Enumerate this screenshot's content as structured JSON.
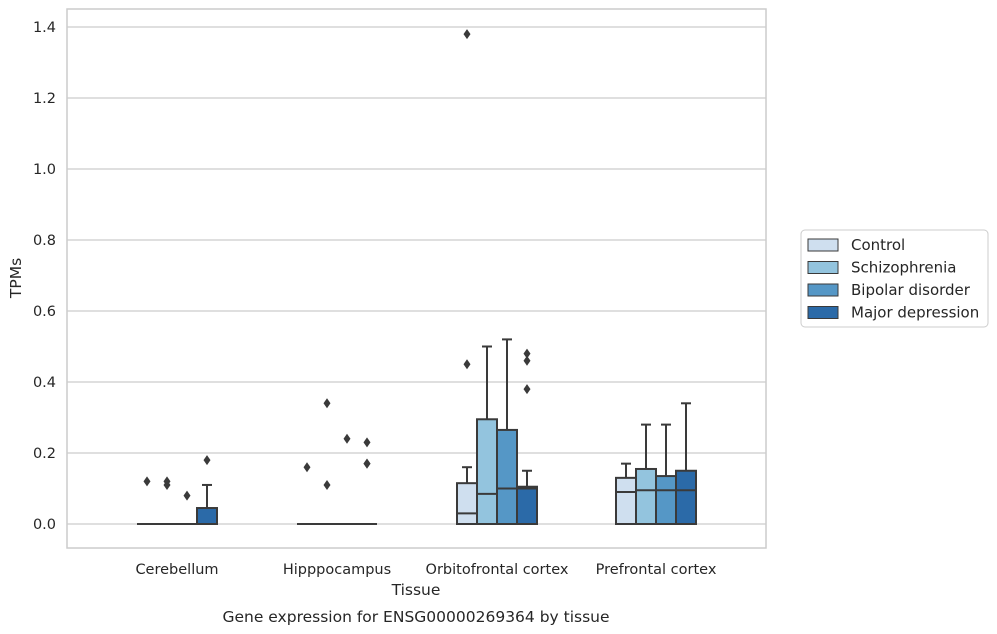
{
  "chart_data": {
    "type": "box",
    "title": "",
    "caption": "Gene expression for ENSG00000269364 by tissue",
    "xlabel": "Tissue",
    "ylabel": "TPMs",
    "ylim": [
      -0.065,
      1.45
    ],
    "yticks": [
      0.0,
      0.2,
      0.4,
      0.6,
      0.8,
      1.0,
      1.2,
      1.4
    ],
    "ytick_labels": [
      "0.0",
      "0.2",
      "0.4",
      "0.6",
      "0.8",
      "1.0",
      "1.2",
      "1.4"
    ],
    "grid": "horizontal",
    "legend_position": "right",
    "categories": [
      "Cerebellum",
      "Hipppocampus",
      "Orbitofrontal cortex",
      "Prefrontal cortex"
    ],
    "series": [
      {
        "name": "Control",
        "color": "#cfdfef",
        "boxes": [
          {
            "q1": 0,
            "median": 0,
            "q3": 0,
            "whisker_low": 0,
            "whisker_high": 0,
            "outliers": [
              0.12
            ]
          },
          {
            "q1": 0,
            "median": 0,
            "q3": 0,
            "whisker_low": 0,
            "whisker_high": 0,
            "outliers": [
              0.16
            ]
          },
          {
            "q1": 0,
            "median": 0.03,
            "q3": 0.115,
            "whisker_low": 0,
            "whisker_high": 0.16,
            "outliers": [
              0.45,
              1.38
            ]
          },
          {
            "q1": 0,
            "median": 0.09,
            "q3": 0.13,
            "whisker_low": 0,
            "whisker_high": 0.17,
            "outliers": []
          }
        ]
      },
      {
        "name": "Schizophrenia",
        "color": "#93c4de",
        "boxes": [
          {
            "q1": 0,
            "median": 0,
            "q3": 0,
            "whisker_low": 0,
            "whisker_high": 0,
            "outliers": [
              0.11,
              0.12
            ]
          },
          {
            "q1": 0,
            "median": 0,
            "q3": 0,
            "whisker_low": 0,
            "whisker_high": 0,
            "outliers": [
              0.11,
              0.34
            ]
          },
          {
            "q1": 0,
            "median": 0.085,
            "q3": 0.295,
            "whisker_low": 0,
            "whisker_high": 0.5,
            "outliers": []
          },
          {
            "q1": 0,
            "median": 0.095,
            "q3": 0.155,
            "whisker_low": 0,
            "whisker_high": 0.28,
            "outliers": []
          }
        ]
      },
      {
        "name": "Bipolar disorder",
        "color": "#5597c6",
        "boxes": [
          {
            "q1": 0,
            "median": 0,
            "q3": 0,
            "whisker_low": 0,
            "whisker_high": 0,
            "outliers": [
              0.08
            ]
          },
          {
            "q1": 0,
            "median": 0,
            "q3": 0,
            "whisker_low": 0,
            "whisker_high": 0,
            "outliers": [
              0.24
            ]
          },
          {
            "q1": 0,
            "median": 0.1,
            "q3": 0.265,
            "whisker_low": 0,
            "whisker_high": 0.52,
            "outliers": []
          },
          {
            "q1": 0,
            "median": 0.095,
            "q3": 0.135,
            "whisker_low": 0,
            "whisker_high": 0.28,
            "outliers": []
          }
        ]
      },
      {
        "name": "Major depression",
        "color": "#2b6aa8",
        "boxes": [
          {
            "q1": 0,
            "median": 0,
            "q3": 0.045,
            "whisker_low": 0,
            "whisker_high": 0.11,
            "outliers": [
              0.18
            ]
          },
          {
            "q1": 0,
            "median": 0,
            "q3": 0,
            "whisker_low": 0,
            "whisker_high": 0,
            "outliers": [
              0.17,
              0.17,
              0.23
            ]
          },
          {
            "q1": 0,
            "median": 0.1,
            "q3": 0.105,
            "whisker_low": 0,
            "whisker_high": 0.15,
            "outliers": [
              0.38,
              0.46,
              0.48
            ]
          },
          {
            "q1": 0,
            "median": 0.095,
            "q3": 0.15,
            "whisker_low": 0,
            "whisker_high": 0.34,
            "outliers": []
          }
        ]
      }
    ]
  },
  "colors": {
    "grid": "#cccccc",
    "frame": "#cccccc",
    "line": "#3a3a3a"
  }
}
